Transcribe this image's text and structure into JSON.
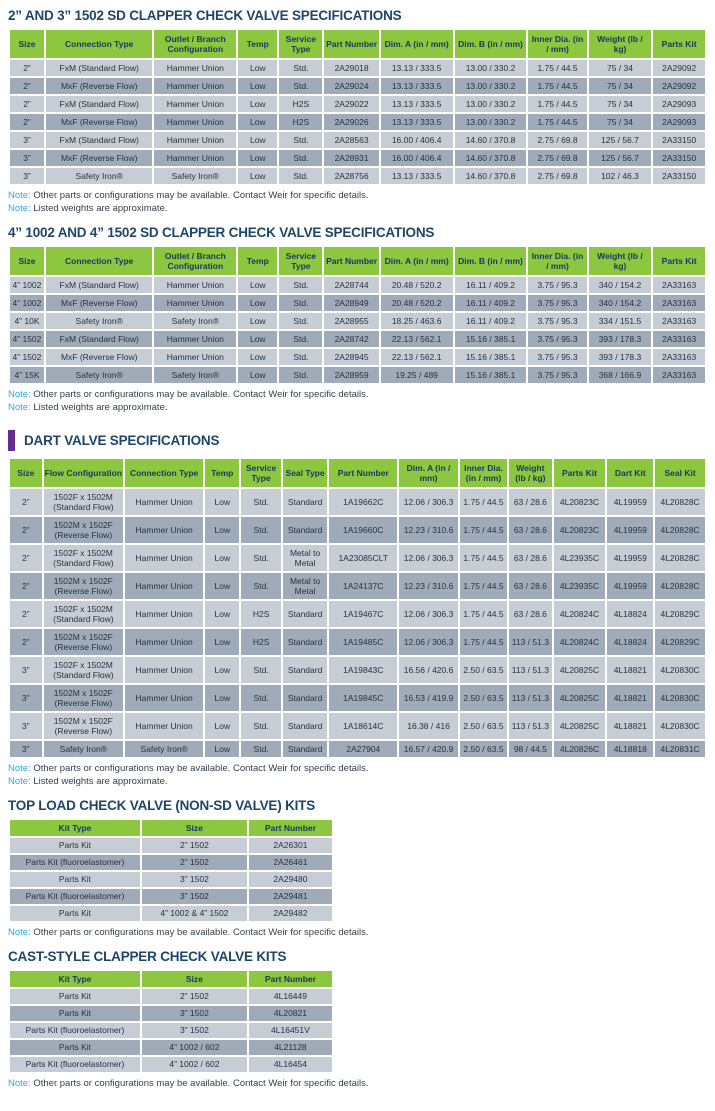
{
  "note_label": "Note:",
  "colors": {
    "header_green": "#8dc63f",
    "row_light": "#c6cdd4",
    "row_dark": "#9fabb8",
    "title_navy": "#1d4668",
    "note_cyan": "#29abe2",
    "accent_purple": "#662d91"
  },
  "sections": [
    {
      "title": "2” AND 3” 1502 SD CLAPPER CHECK VALVE SPECIFICATIONS",
      "columns": [
        "Size",
        "Connection Type",
        "Outlet / Branch Configuration",
        "Temp",
        "Service Type",
        "Part Number",
        "Dim. A (in / mm)",
        "Dim. B (in / mm)",
        "Inner Dia. (in / mm)",
        "Weight (lb / kg)",
        "Parts Kit"
      ],
      "rows": [
        [
          "2”",
          "FxM (Standard Flow)",
          "Hammer Union",
          "Low",
          "Std.",
          "2A29018",
          "13.13 / 333.5",
          "13.00 / 330.2",
          "1.75 / 44.5",
          "75 / 34",
          "2A29092"
        ],
        [
          "2”",
          "MxF (Reverse Flow)",
          "Hammer Union",
          "Low",
          "Std.",
          "2A29024",
          "13.13 / 333.5",
          "13.00 / 330.2",
          "1.75 / 44.5",
          "75 / 34",
          "2A29092"
        ],
        [
          "2”",
          "FxM (Standard Flow)",
          "Hammer Union",
          "Low",
          "H2S",
          "2A29022",
          "13.13 / 333.5",
          "13.00 / 330.2",
          "1.75 / 44.5",
          "75 / 34",
          "2A29093"
        ],
        [
          "2”",
          "MxF (Reverse Flow)",
          "Hammer Union",
          "Low",
          "H2S",
          "2A29026",
          "13.13 / 333.5",
          "13.00 / 330.2",
          "1.75 / 44.5",
          "75 / 34",
          "2A29093"
        ],
        [
          "3”",
          "FxM (Standard Flow)",
          "Hammer Union",
          "Low",
          "Std.",
          "2A28563",
          "16.00 / 406.4",
          "14.60 / 370.8",
          "2.75 / 69.8",
          "125 / 56.7",
          "2A33150"
        ],
        [
          "3”",
          "MxF (Reverse Flow)",
          "Hammer Union",
          "Low",
          "Std.",
          "2A28931",
          "16.00 / 406.4",
          "14.60 / 370.8",
          "2.75 / 69.8",
          "125 / 56.7",
          "2A33150"
        ],
        [
          "3”",
          "Safety Iron®",
          "Safety Iron®",
          "Low",
          "Std.",
          "2A28756",
          "13.13 / 333.5",
          "14.60 / 370.8",
          "2.75 / 69.8",
          "102 / 46.3",
          "2A33150"
        ]
      ],
      "notes": [
        "Other parts or configurations may be available. Contact Weir for specific details.",
        "Listed weights are approximate."
      ]
    },
    {
      "title": "4” 1002 AND 4” 1502 SD CLAPPER CHECK VALVE SPECIFICATIONS",
      "columns": [
        "Size",
        "Connection Type",
        "Outlet / Branch Configuration",
        "Temp",
        "Service Type",
        "Part Number",
        "Dim. A (in / mm)",
        "Dim. B (in / mm)",
        "Inner Dia. (in / mm)",
        "Weight (lb / kg)",
        "Parts Kit"
      ],
      "rows": [
        [
          "4” 1002",
          "FxM (Standard Flow)",
          "Hammer Union",
          "Low",
          "Std.",
          "2A28744",
          "20.48 / 520.2",
          "16.11 / 409.2",
          "3.75 / 95.3",
          "340 / 154.2",
          "2A33163"
        ],
        [
          "4” 1002",
          "MxF (Reverse Flow)",
          "Hammer Union",
          "Low",
          "Std.",
          "2A28949",
          "20.48 / 520.2",
          "16.11 / 409.2",
          "3.75 / 95.3",
          "340 / 154.2",
          "2A33163"
        ],
        [
          "4” 10K",
          "Safety Iron®",
          "Safety Iron®",
          "Low",
          "Std.",
          "2A28955",
          "18.25 / 463.6",
          "16.11 / 409.2",
          "3.75 / 95.3",
          "334 / 151.5",
          "2A33163"
        ],
        [
          "4” 1502",
          "FxM (Standard Flow)",
          "Hammer Union",
          "Low",
          "Std.",
          "2A28742",
          "22.13 / 562.1",
          "15.16 / 385.1",
          "3.75 / 95.3",
          "393 / 178.3",
          "2A33163"
        ],
        [
          "4” 1502",
          "MxF (Reverse Flow)",
          "Hammer Union",
          "Low",
          "Std.",
          "2A28945",
          "22.13 / 562.1",
          "15.16 / 385.1",
          "3.75 / 95.3",
          "393 / 178.3",
          "2A33163"
        ],
        [
          "4” 15K",
          "Safety Iron®",
          "Safety Iron®",
          "Low",
          "Std.",
          "2A28959",
          "19.25 / 489",
          "15.16 / 385.1",
          "3.75 / 95.3",
          "368 / 166.9",
          "2A33163"
        ]
      ],
      "notes": [
        "Other parts or configurations may be available. Contact Weir for specific details.",
        "Listed weights are approximate."
      ]
    },
    {
      "title": "DART VALVE SPECIFICATIONS",
      "has_accent_bar": true,
      "columns": [
        "Size",
        "Flow Configuration",
        "Connection Type",
        "Temp",
        "Service Type",
        "Seal Type",
        "Part Number",
        "Dim. A (in / mm)",
        "Inner Dia. (in / mm)",
        "Weight (lb / kg)",
        "Parts Kit",
        "Dart Kit",
        "Seal Kit"
      ],
      "rows": [
        [
          "2”",
          "1502F x 1502M (Standard Flow)",
          "Hammer Union",
          "Low",
          "Std.",
          "Standard",
          "1A19662C",
          "12.06 / 306.3",
          "1.75 / 44.5",
          "63 / 28.6",
          "4L20823C",
          "4L19959",
          "4L20828C"
        ],
        [
          "2”",
          "1502M x 1502F (Reverse Flow)",
          "Hammer Union",
          "Low",
          "Std.",
          "Standard",
          "1A19660C",
          "12.23 / 310.6",
          "1.75 / 44.5",
          "63 / 28.6",
          "4L20823C",
          "4L19959",
          "4L20828C"
        ],
        [
          "2”",
          "1502F x 1502M (Standard Flow)",
          "Hammer Union",
          "Low",
          "Std.",
          "Metal to Metal",
          "1A23085CLT",
          "12.06 / 306.3",
          "1.75 / 44.5",
          "63 / 28.6",
          "4L23935C",
          "4L19959",
          "4L20828C"
        ],
        [
          "2”",
          "1502M x 1502F (Reverse Flow)",
          "Hammer Union",
          "Low",
          "Std.",
          "Metal to Metal",
          "1A24137C",
          "12.23 / 310.6",
          "1.75 / 44.5",
          "63 / 28.6",
          "4L23935C",
          "4L19959",
          "4L20828C"
        ],
        [
          "2”",
          "1502F x 1502M (Standard Flow)",
          "Hammer Union",
          "Low",
          "H2S",
          "Standard",
          "1A19467C",
          "12.06 / 306.3",
          "1.75 / 44.5",
          "63 / 28.6",
          "4L20824C",
          "4L18824",
          "4L20829C"
        ],
        [
          "2”",
          "1502M x 1502F (Reverse Flow)",
          "Hammer Union",
          "Low",
          "H2S",
          "Standard",
          "1A19485C",
          "12.06 / 306.3",
          "1.75 / 44.5",
          "113 / 51.3",
          "4L20824C",
          "4L18824",
          "4L20829C"
        ],
        [
          "3”",
          "1502F x 1502M (Standard Flow)",
          "Hammer Union",
          "Low",
          "Std.",
          "Standard",
          "1A19843C",
          "16.56 / 420.6",
          "2.50 / 63.5",
          "113 / 51.3",
          "4L20825C",
          "4L18821",
          "4L20830C"
        ],
        [
          "3”",
          "1502M x 1502F (Reverse Flow)",
          "Hammer Union",
          "Low",
          "Std.",
          "Standard",
          "1A19845C",
          "16.53 / 419.9",
          "2.50 / 63.5",
          "113 / 51.3",
          "4L20825C",
          "4L18821",
          "4L20830C"
        ],
        [
          "3”",
          "1502M x 1502F (Reverse Flow)",
          "Hammer Union",
          "Low",
          "Std.",
          "Standard",
          "1A18614C",
          "16.38 / 416",
          "2.50 / 63.5",
          "113 / 51.3",
          "4L20825C",
          "4L18821",
          "4L20830C"
        ],
        [
          "3”",
          "Safety Iron®",
          "Safety Iron®",
          "Low",
          "Std.",
          "Standard",
          "2A27904",
          "16.57 / 420.9",
          "2.50 / 63.5",
          "98 / 44.5",
          "4L20826C",
          "4L18818",
          "4L20831C"
        ]
      ],
      "notes": [
        "Other parts or configurations may be available. Contact Weir for specific details.",
        "Listed weights are approximate."
      ]
    },
    {
      "title": "TOP LOAD CHECK VALVE (NON-SD VALVE) KITS",
      "columns": [
        "Kit Type",
        "Size",
        "Part Number"
      ],
      "rows": [
        [
          "Parts Kit",
          "2” 1502",
          "2A26301"
        ],
        [
          "Parts Kit (fluoroelastomer)",
          "2” 1502",
          "2A26461"
        ],
        [
          "Parts Kit",
          "3” 1502",
          "2A29480"
        ],
        [
          "Parts Kit (fluoroelastomer)",
          "3” 1502",
          "2A29481"
        ],
        [
          "Parts Kit",
          "4” 1002 & 4” 1502",
          "2A29482"
        ]
      ],
      "notes": [
        "Other parts or configurations may be available. Contact Weir for specific details."
      ]
    },
    {
      "title": "CAST-STYLE CLAPPER CHECK VALVE KITS",
      "columns": [
        "Kit Type",
        "Size",
        "Part Number"
      ],
      "rows": [
        [
          "Parts Kit",
          "2” 1502",
          "4L16449"
        ],
        [
          "Parts Kit",
          "3” 1502",
          "4L20821"
        ],
        [
          "Parts Kit (fluoroelastomer)",
          "3” 1502",
          "4L16451V"
        ],
        [
          "Parts Kit",
          "4” 1002 / 602",
          "4L21128"
        ],
        [
          "Parts Kit (fluoroelastomer)",
          "4” 1002 / 602",
          "4L16454"
        ]
      ],
      "notes": [
        "Other parts or configurations may be available. Contact Weir for specific details."
      ]
    }
  ]
}
